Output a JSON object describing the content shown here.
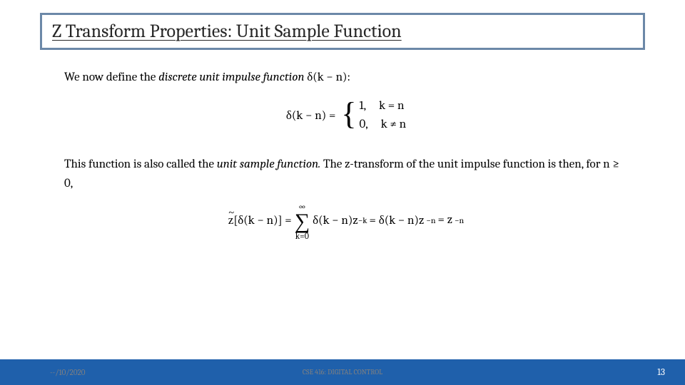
{
  "title": {
    "text": "Z Transform Properties: Unit Sample Function",
    "border_color": "#6c88a8",
    "text_color": "#262626",
    "font_size": 26
  },
  "content": {
    "para1_prefix": "We now define the ",
    "para1_italic": "discrete unit impulse function",
    "para1_suffix": " δ(k −  n):",
    "eq1_lhs": "δ(k − n) = ",
    "eq1_case1_val": "1,",
    "eq1_case1_cond": "k = n",
    "eq1_case2_val": "0,",
    "eq1_case2_cond": "k ≠ n",
    "para2_a": "This function is also called the ",
    "para2_italic": "unit sample function.",
    "para2_b": " The z-transform of the unit impulse function is then, for n ≥ 0,",
    "eq2_z": "z",
    "eq2_lbr": "[δ(k − n)] = ",
    "eq2_sum_top": "∞",
    "eq2_sum_bot": "k=0",
    "eq2_after_sum": " δ(k −  n)z",
    "eq2_exp1": "−k",
    "eq2_mid": " = δ(k − n)z",
    "eq2_exp2": "−n",
    "eq2_end": " = z",
    "eq2_exp3": "−n"
  },
  "footer": {
    "date": "--/10/2020",
    "course": "CSE 416: DIGITAL CONTROL",
    "page": "13",
    "bar_color": "#1f60ab"
  }
}
